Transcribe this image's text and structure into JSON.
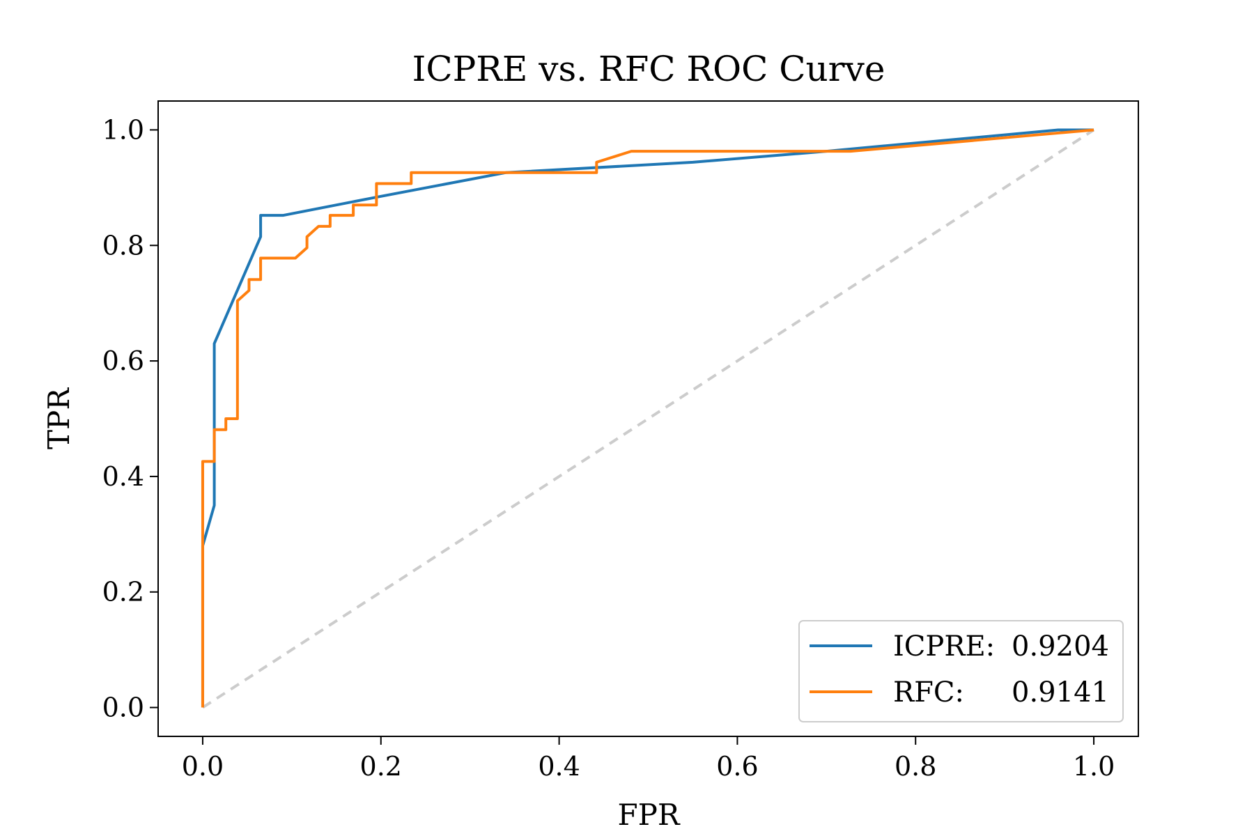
{
  "chart_data": {
    "type": "line",
    "title": "ICPRE vs. RFC ROC Curve",
    "xlabel": "FPR",
    "ylabel": "TPR",
    "xlim": [
      -0.05,
      1.05
    ],
    "ylim": [
      -0.05,
      1.05
    ],
    "xticks": [
      0.0,
      0.2,
      0.4,
      0.6,
      0.8,
      1.0
    ],
    "yticks": [
      0.0,
      0.2,
      0.4,
      0.6,
      0.8,
      1.0
    ],
    "xtick_labels": [
      "0.0",
      "0.2",
      "0.4",
      "0.6",
      "0.8",
      "1.0"
    ],
    "ytick_labels": [
      "0.0",
      "0.2",
      "0.4",
      "0.6",
      "0.8",
      "1.0"
    ],
    "grid": false,
    "legend_position": "lower-right",
    "series": [
      {
        "name": "ICPRE",
        "legend_value": "0.9204",
        "color": "#1f77b4",
        "x": [
          0.0,
          0.0,
          0.013,
          0.013,
          0.013,
          0.065,
          0.065,
          0.09,
          0.2,
          0.34,
          0.55,
          0.7,
          0.96,
          1.0
        ],
        "y": [
          0.0,
          0.28,
          0.35,
          0.48,
          0.63,
          0.815,
          0.852,
          0.852,
          0.885,
          0.926,
          0.944,
          0.963,
          1.0,
          1.0
        ]
      },
      {
        "name": "RFC",
        "legend_value": "0.9141",
        "color": "#ff7f0e",
        "x": [
          0.0,
          0.0,
          0.013,
          0.013,
          0.026,
          0.026,
          0.039,
          0.039,
          0.052,
          0.052,
          0.065,
          0.065,
          0.104,
          0.117,
          0.117,
          0.13,
          0.143,
          0.143,
          0.169,
          0.169,
          0.195,
          0.195,
          0.234,
          0.234,
          0.442,
          0.442,
          0.481,
          0.727,
          1.0
        ],
        "y": [
          0.0,
          0.426,
          0.426,
          0.481,
          0.481,
          0.5,
          0.5,
          0.704,
          0.722,
          0.741,
          0.741,
          0.778,
          0.778,
          0.796,
          0.815,
          0.833,
          0.833,
          0.852,
          0.852,
          0.87,
          0.87,
          0.907,
          0.907,
          0.926,
          0.926,
          0.944,
          0.963,
          0.963,
          1.0
        ]
      }
    ],
    "reference_line": {
      "style": "dashed",
      "color": "#cccccc",
      "x": [
        0.0,
        1.0
      ],
      "y": [
        0.0,
        1.0
      ]
    }
  },
  "legend": {
    "entries": [
      {
        "label": "ICPRE:",
        "value": "0.9204"
      },
      {
        "label": "RFC:",
        "value": "0.9141"
      }
    ]
  }
}
